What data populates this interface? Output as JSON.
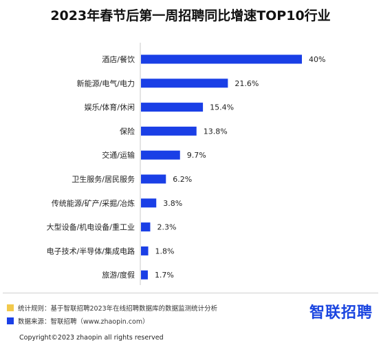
{
  "chart_data": {
    "type": "bar",
    "orientation": "horizontal",
    "title": "2023年春节后第一周招聘同比增速TOP10行业",
    "categories": [
      "酒店/餐饮",
      "新能源/电气/电力",
      "娱乐/体育/休闲",
      "保险",
      "交通/运输",
      "卫生服务/居民服务",
      "传统能源/矿产/采掘/冶炼",
      "大型设备/机电设备/重工业",
      "电子技术/半导体/集成电路",
      "旅游/度假"
    ],
    "values": [
      40,
      21.6,
      15.4,
      13.8,
      9.7,
      6.2,
      3.8,
      2.3,
      1.8,
      1.7
    ],
    "value_labels": [
      "40%",
      "21.6%",
      "15.4%",
      "13.8%",
      "9.7%",
      "6.2%",
      "3.8%",
      "2.3%",
      "1.8%",
      "1.7%"
    ],
    "xlim": [
      0,
      40
    ],
    "bar_color": "#1a3fe6",
    "grid": false
  },
  "legend": {
    "rule_color": "#f2c94c",
    "rule_text": "统计规则：基于智联招聘2023年在线招聘数据库的数据监测统计分析",
    "source_color": "#1a3fe6",
    "source_text": "数据来源：智联招聘（www.zhaopin.com）"
  },
  "brand": "智联招聘",
  "copyright": "Copyright©2023 zhaopin all rights reserved"
}
